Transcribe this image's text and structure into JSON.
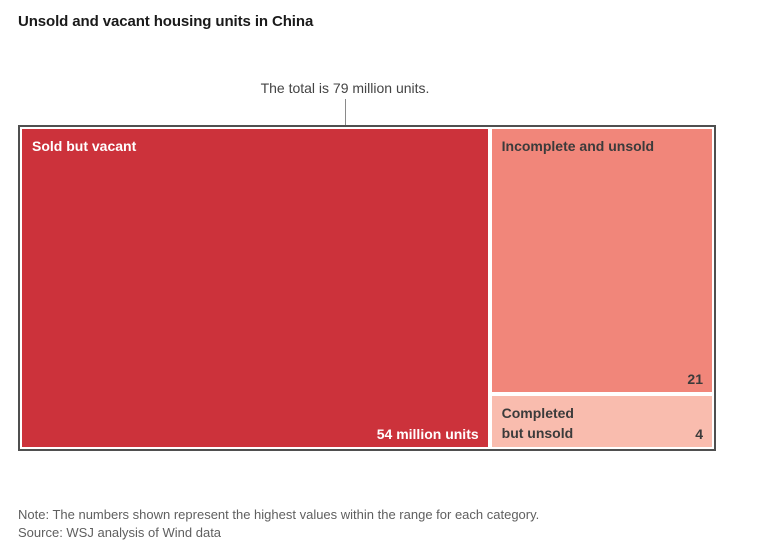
{
  "page": {
    "title": "Unsold and vacant housing units in China",
    "annotation": "The total is 79 million units.",
    "note": "Note: The numbers shown represent the highest values within the range for each category.",
    "source": "Source: WSJ analysis of Wind data"
  },
  "treemap": {
    "blocks": {
      "sold": {
        "label": "Sold but vacant",
        "value_label": "54 million units"
      },
      "incomplete": {
        "label": "Incomplete and unsold",
        "value_label": "21"
      },
      "completed": {
        "label": "Completed but unsold",
        "value_label": "4"
      }
    }
  },
  "colors": {
    "sold": "#cc323b",
    "incomplete": "#f1867a",
    "completed": "#f9bcae",
    "frame_border": "#4f4f4f",
    "connector": "#8a8a8a"
  },
  "chart_data": {
    "type": "treemap",
    "title": "Unsold and vacant housing units in China",
    "total": 79,
    "total_annotation": "The total is 79 million units.",
    "unit": "million units",
    "categories": [
      "Sold but vacant",
      "Incomplete and unsold",
      "Completed but unsold"
    ],
    "values": [
      54,
      21,
      4
    ],
    "colors": [
      "#cc323b",
      "#f1867a",
      "#f9bcae"
    ],
    "layout": "largest block left, two smaller blocks stacked right",
    "note": "Note: The numbers shown represent the highest values within the range for each category.",
    "source": "Source: WSJ analysis of Wind data"
  }
}
